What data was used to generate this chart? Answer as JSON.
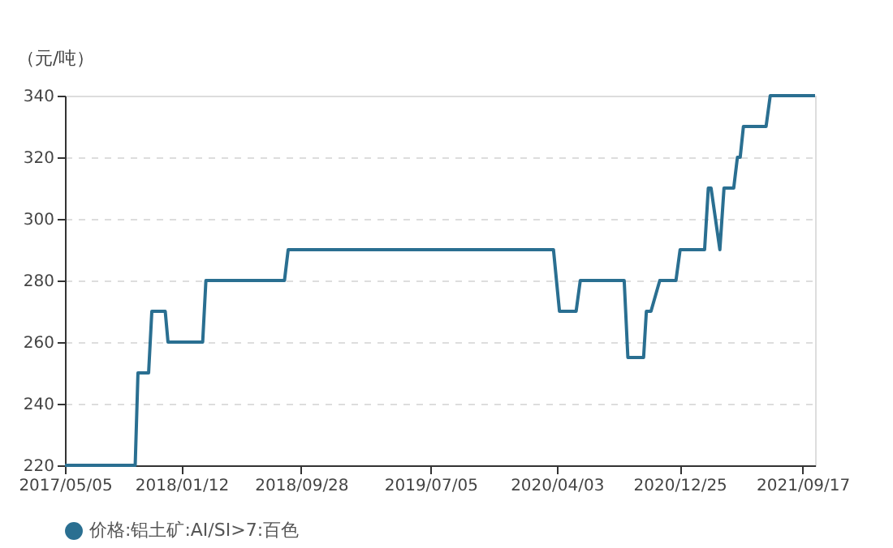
{
  "chart_data": {
    "type": "line",
    "ylabel": "（元/吨）",
    "x": [
      "2017-05-05",
      "2017-10-04",
      "2017-10-10",
      "2017-11-02",
      "2017-11-09",
      "2017-12-08",
      "2017-12-14",
      "2018-02-27",
      "2018-03-06",
      "2018-08-23",
      "2018-08-31",
      "2020-03-27",
      "2020-04-09",
      "2020-05-15",
      "2020-05-24",
      "2020-08-27",
      "2020-09-04",
      "2020-10-08",
      "2020-10-14",
      "2020-10-24",
      "2020-11-12",
      "2020-12-17",
      "2020-12-26",
      "2021-02-17",
      "2021-02-25",
      "2021-03-03",
      "2021-03-22",
      "2021-03-31",
      "2021-04-21",
      "2021-04-29",
      "2021-05-05",
      "2021-05-12",
      "2021-06-30",
      "2021-07-09",
      "2021-10-14"
    ],
    "series": [
      {
        "name": "价格:铝土矿:AI/SI>7:百色",
        "color": "#2a6f91",
        "values": [
          220,
          220,
          250,
          250,
          270,
          270,
          260,
          260,
          280,
          280,
          290,
          290,
          270,
          270,
          280,
          280,
          255,
          255,
          270,
          270,
          280,
          280,
          290,
          290,
          310,
          310,
          290,
          310,
          310,
          320,
          320,
          330,
          330,
          340,
          340
        ]
      }
    ],
    "xlim": [
      "2017-05-05",
      "2021-10-14"
    ],
    "xticks": [
      {
        "value": "2017-05-05",
        "label": "2017/05/05"
      },
      {
        "value": "2018-01-12",
        "label": "2018/01/12"
      },
      {
        "value": "2018-09-28",
        "label": "2018/09/28"
      },
      {
        "value": "2019-07-05",
        "label": "2019/07/05"
      },
      {
        "value": "2020-04-03",
        "label": "2020/04/03"
      },
      {
        "value": "2020-12-25",
        "label": "2020/12/25"
      },
      {
        "value": "2021-09-17",
        "label": "2021/09/17"
      }
    ],
    "ylim": [
      220,
      340
    ],
    "yticks": [
      220,
      240,
      260,
      280,
      300,
      320,
      340
    ],
    "grid": "y",
    "legend": "bottom"
  }
}
